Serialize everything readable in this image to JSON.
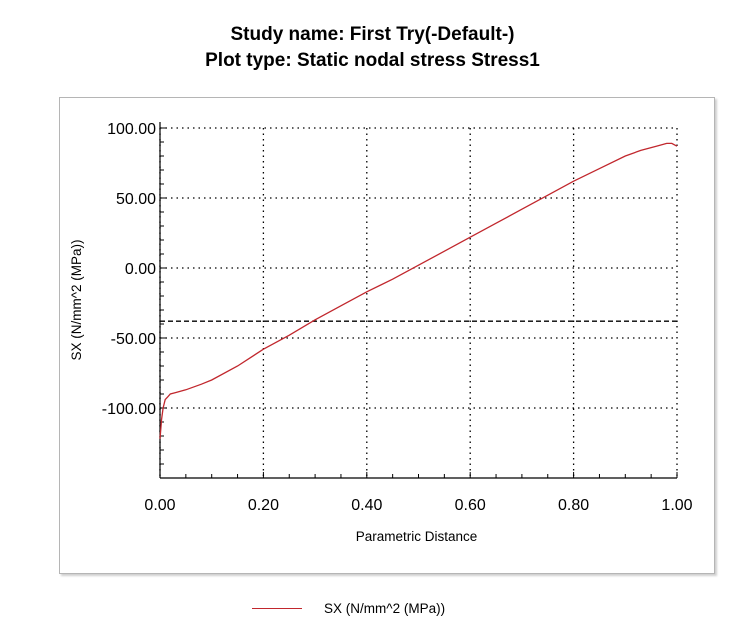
{
  "title_line1": "Study name: First Try(-Default-)",
  "title_line2": "Plot type: Static nodal stress Stress1",
  "colors": {
    "series": "#c1272d",
    "grid": "#000000",
    "reference_line": "#000000"
  },
  "chart_data": {
    "type": "line",
    "xlabel": "Parametric Distance",
    "ylabel": "SX (N/mm^2 (MPa))",
    "xlim": [
      0,
      1
    ],
    "ylim": [
      -150,
      100
    ],
    "x_ticks": [
      0,
      0.2,
      0.4,
      0.6,
      0.8,
      1.0
    ],
    "x_tick_labels": [
      "0.00",
      "0.20",
      "0.40",
      "0.60",
      "0.80",
      "1.00"
    ],
    "y_ticks": [
      -100,
      -50,
      0,
      50,
      100
    ],
    "y_tick_labels": [
      "-100.00",
      "-50.00",
      "0.00",
      "50.00",
      "100.00"
    ],
    "grid": true,
    "legend_position": "bottom",
    "reference_line_y": -38,
    "series": [
      {
        "name": "SX (N/mm^2 (MPa))",
        "x": [
          0,
          0.003,
          0.006,
          0.01,
          0.015,
          0.02,
          0.03,
          0.05,
          0.08,
          0.1,
          0.15,
          0.2,
          0.25,
          0.3,
          0.35,
          0.4,
          0.45,
          0.5,
          0.55,
          0.6,
          0.65,
          0.7,
          0.75,
          0.8,
          0.85,
          0.9,
          0.93,
          0.96,
          0.98,
          0.99,
          1.0
        ],
        "y": [
          -122,
          -108,
          -100,
          -94,
          -92,
          -90,
          -89,
          -87,
          -83,
          -80,
          -70,
          -58,
          -48,
          -37,
          -27,
          -17,
          -8,
          2,
          12,
          22,
          32,
          42,
          52,
          62,
          71,
          80,
          84,
          87,
          89,
          89,
          87
        ]
      }
    ]
  }
}
